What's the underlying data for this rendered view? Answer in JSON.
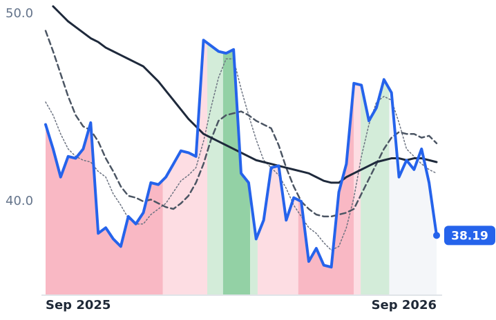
{
  "chart_data": {
    "type": "line",
    "x": [
      0,
      1,
      2,
      3,
      4,
      5,
      6,
      7,
      8,
      9,
      10,
      11,
      12,
      13,
      14,
      15,
      16,
      17,
      18,
      19,
      20,
      21,
      22,
      23,
      24,
      25,
      26,
      27,
      28,
      29,
      30,
      31,
      32,
      33,
      34,
      35,
      36,
      37,
      38,
      39,
      40,
      41,
      42,
      43,
      44,
      45,
      46,
      47,
      48,
      49,
      50,
      51,
      52
    ],
    "xlim": [
      0,
      52
    ],
    "xticks": [
      {
        "value": 0,
        "label": "Sep 2025"
      },
      {
        "value": 52,
        "label": "Sep 2026"
      }
    ],
    "ylim": [
      35.04,
      50.74
    ],
    "yticks": [
      {
        "value": 40,
        "label": "40.0"
      },
      {
        "value": 50,
        "label": "50.0"
      }
    ],
    "series": [
      {
        "color": "#2563eb",
        "style": "solid",
        "width": 4,
        "values": [
          44.1,
          42.8,
          41.3,
          42.4,
          42.3,
          42.8,
          44.2,
          38.3,
          38.6,
          38.0,
          37.6,
          39.2,
          38.8,
          39.4,
          41.0,
          40.9,
          41.3,
          42.0,
          42.7,
          42.6,
          42.4,
          48.6,
          48.3,
          48.0,
          47.9,
          48.1,
          41.5,
          41.0,
          38.0,
          39.0,
          41.8,
          41.9,
          39.0,
          40.2,
          40.0,
          36.8,
          37.5,
          36.6,
          36.5,
          40.5,
          42.0,
          46.3,
          46.2,
          44.3,
          45.0,
          46.5,
          45.8,
          41.3,
          42.2,
          41.7,
          42.8,
          41.0,
          38.19
        ]
      },
      {
        "color": "#1e293b",
        "style": "solid",
        "width": 3,
        "values": [
          null,
          50.4,
          50.0,
          49.6,
          49.3,
          49.0,
          48.7,
          48.5,
          48.2,
          48.0,
          47.8,
          47.6,
          47.4,
          47.2,
          46.8,
          46.4,
          45.9,
          45.4,
          44.9,
          44.4,
          44.0,
          43.6,
          43.4,
          43.2,
          43.0,
          42.8,
          42.6,
          42.4,
          42.2,
          42.1,
          42.0,
          41.9,
          41.8,
          41.7,
          41.6,
          41.5,
          41.3,
          41.1,
          41.0,
          41.0,
          41.3,
          41.5,
          41.7,
          41.9,
          42.1,
          42.2,
          42.3,
          42.3,
          42.2,
          42.3,
          42.3,
          42.2,
          42.1
        ]
      },
      {
        "color": "#4b5563",
        "style": "dashed",
        "width": 2.5,
        "values": [
          49.1,
          48.0,
          46.8,
          45.6,
          44.6,
          44.0,
          43.8,
          43.2,
          42.3,
          41.6,
          40.8,
          40.3,
          40.2,
          40.0,
          40.1,
          39.9,
          39.7,
          39.6,
          39.9,
          40.3,
          41.0,
          42.0,
          43.3,
          44.3,
          44.6,
          44.7,
          44.8,
          44.6,
          44.3,
          44.1,
          43.9,
          43.0,
          41.8,
          40.8,
          40.0,
          39.6,
          39.3,
          39.2,
          39.2,
          39.3,
          39.4,
          39.6,
          40.4,
          41.2,
          42.0,
          42.8,
          43.4,
          43.7,
          43.6,
          43.6,
          43.4,
          43.5,
          43.1
        ]
      },
      {
        "color": "#6b7280",
        "style": "dotted",
        "width": 1.5,
        "values": [
          45.3,
          44.6,
          43.6,
          42.8,
          42.4,
          42.2,
          42.1,
          41.6,
          41.3,
          40.4,
          39.8,
          39.1,
          38.8,
          38.8,
          39.3,
          39.6,
          39.9,
          40.5,
          41.1,
          41.4,
          41.8,
          43.2,
          45.0,
          46.6,
          47.6,
          47.6,
          46.0,
          44.6,
          43.3,
          42.2,
          41.8,
          41.4,
          40.7,
          39.8,
          39.2,
          38.6,
          38.3,
          37.8,
          37.4,
          37.6,
          38.6,
          40.2,
          42.4,
          44.1,
          45.3,
          45.6,
          45.4,
          44.2,
          42.8,
          42.4,
          42.0,
          41.7,
          41.5
        ]
      }
    ],
    "zones": [
      {
        "start": 0,
        "end": 15.6,
        "color": "#f9b8c4"
      },
      {
        "start": 15.6,
        "end": 21.5,
        "color": "#fddde3"
      },
      {
        "start": 21.5,
        "end": 23.6,
        "color": "#d3ecd9"
      },
      {
        "start": 23.6,
        "end": 27.2,
        "color": "#93d1a5"
      },
      {
        "start": 27.2,
        "end": 28.2,
        "color": "#d3ecd9"
      },
      {
        "start": 28.2,
        "end": 33.6,
        "color": "#fddde3"
      },
      {
        "start": 33.6,
        "end": 41,
        "color": "#f9b8c4"
      },
      {
        "start": 41,
        "end": 41.9,
        "color": "#fddde3"
      },
      {
        "start": 41.9,
        "end": 45.7,
        "color": "#d3ecd9"
      },
      {
        "start": 45.7,
        "end": 52,
        "color": "#f4f6f9"
      }
    ]
  }
}
